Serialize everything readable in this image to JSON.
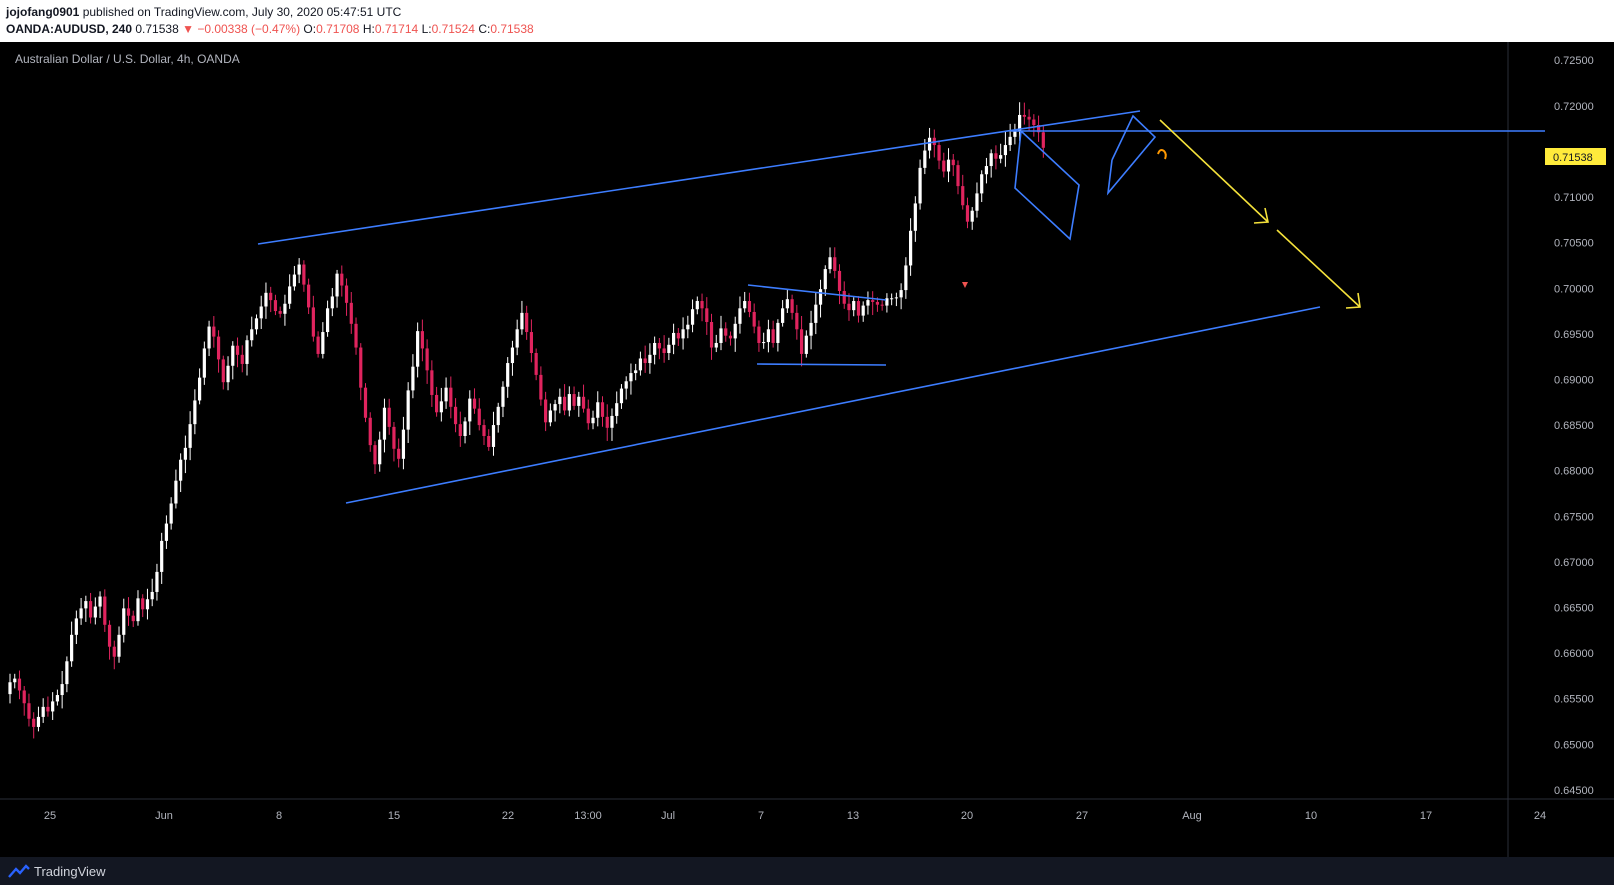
{
  "header": {
    "author": "jojofang0901",
    "published_text": " published on TradingView.com, July 30, 2020 05:47:51 UTC",
    "symbol": "OANDA:AUDUSD, 240",
    "last": "0.71538",
    "change": "▼ −0.00338 (−0.47%)",
    "o_label": "O:",
    "o_value": "0.71708",
    "h_label": "H:",
    "h_value": "0.71714",
    "l_label": "L:",
    "l_value": "0.71524",
    "c_label": "C:",
    "c_value": "0.71538"
  },
  "chart_title": "Australian Dollar / U.S. Dollar, 4h, OANDA",
  "price_tag": "0.71538",
  "footer": {
    "brand": "TradingView",
    "logo_icon": "tradingview-logo-icon"
  },
  "colors": {
    "up": "#ffffff",
    "down": "#e0245e",
    "drawing": "#3d7dff",
    "arrow": "#f5e23b",
    "tag_bg": "#ffeb3b"
  },
  "chart_data": {
    "type": "candlestick",
    "title": "Australian Dollar / U.S. Dollar, 4h, OANDA",
    "x_tick_labels": [
      "25",
      "Jun",
      "8",
      "15",
      "22",
      "13:00",
      "Jul",
      "7",
      "13",
      "20",
      "27",
      "Aug",
      "10",
      "17",
      "24"
    ],
    "y_tick_labels": [
      "0.72500",
      "0.72000",
      "0.71500",
      "0.71000",
      "0.70500",
      "0.70000",
      "0.69500",
      "0.69000",
      "0.68500",
      "0.68000",
      "0.67500",
      "0.67000",
      "0.66500",
      "0.66000",
      "0.65500",
      "0.65000",
      "0.64500"
    ],
    "y_range": [
      0.644,
      0.727
    ],
    "last_price": 0.71538,
    "closes": [
      0.6568,
      0.6572,
      0.6559,
      0.6545,
      0.6528,
      0.6519,
      0.653,
      0.6541,
      0.6536,
      0.6547,
      0.6554,
      0.6566,
      0.6591,
      0.662,
      0.6638,
      0.6649,
      0.6657,
      0.6639,
      0.6651,
      0.6662,
      0.6631,
      0.6607,
      0.6596,
      0.662,
      0.6649,
      0.6641,
      0.6635,
      0.666,
      0.6648,
      0.6659,
      0.6667,
      0.6689,
      0.6723,
      0.6742,
      0.6764,
      0.6789,
      0.6812,
      0.6825,
      0.6851,
      0.6877,
      0.6902,
      0.6934,
      0.6958,
      0.6947,
      0.6922,
      0.6897,
      0.6915,
      0.6937,
      0.6927,
      0.6917,
      0.6943,
      0.6955,
      0.6967,
      0.698,
      0.6995,
      0.6987,
      0.6975,
      0.6972,
      0.6983,
      0.7002,
      0.7015,
      0.7026,
      0.7004,
      0.6979,
      0.6947,
      0.6928,
      0.6952,
      0.6978,
      0.6991,
      0.7016,
      0.7003,
      0.6984,
      0.6961,
      0.6935,
      0.6891,
      0.6858,
      0.6828,
      0.6807,
      0.6834,
      0.6869,
      0.6848,
      0.6824,
      0.6813,
      0.6845,
      0.6888,
      0.6914,
      0.6953,
      0.6934,
      0.691,
      0.6883,
      0.6864,
      0.6876,
      0.6891,
      0.687,
      0.6851,
      0.6838,
      0.6854,
      0.6879,
      0.6868,
      0.685,
      0.6838,
      0.6826,
      0.685,
      0.687,
      0.6892,
      0.6918,
      0.6935,
      0.6955,
      0.6973,
      0.6952,
      0.6929,
      0.6905,
      0.6878,
      0.6853,
      0.6866,
      0.6873,
      0.6881,
      0.6866,
      0.6884,
      0.6871,
      0.6881,
      0.6868,
      0.6852,
      0.6858,
      0.6875,
      0.6859,
      0.6847,
      0.686,
      0.6874,
      0.689,
      0.6898,
      0.6907,
      0.691,
      0.6923,
      0.6918,
      0.6927,
      0.694,
      0.6934,
      0.6929,
      0.6938,
      0.6951,
      0.6945,
      0.6955,
      0.696,
      0.6977,
      0.6986,
      0.6978,
      0.6963,
      0.6935,
      0.694,
      0.6956,
      0.6948,
      0.6945,
      0.6961,
      0.6978,
      0.6986,
      0.6974,
      0.6958,
      0.694,
      0.6941,
      0.6955,
      0.694,
      0.6962,
      0.6978,
      0.6988,
      0.6973,
      0.6955,
      0.6928,
      0.6948,
      0.6962,
      0.6982,
      0.6999,
      0.7021,
      0.7034,
      0.7019,
      0.6997,
      0.6983,
      0.6976,
      0.6986,
      0.697,
      0.6981,
      0.6987,
      0.6985,
      0.6982,
      0.6981,
      0.6989,
      0.6989,
      0.699,
      0.6998,
      0.7025,
      0.7063,
      0.7093,
      0.7132,
      0.7151,
      0.7165,
      0.7157,
      0.714,
      0.7128,
      0.7141,
      0.7135,
      0.7112,
      0.7091,
      0.7073,
      0.7085,
      0.7104,
      0.7125,
      0.7134,
      0.7148,
      0.7142,
      0.7146,
      0.7157,
      0.7166,
      0.7173,
      0.719,
      0.7188,
      0.7185,
      0.7179,
      0.7171,
      0.7154
    ]
  }
}
